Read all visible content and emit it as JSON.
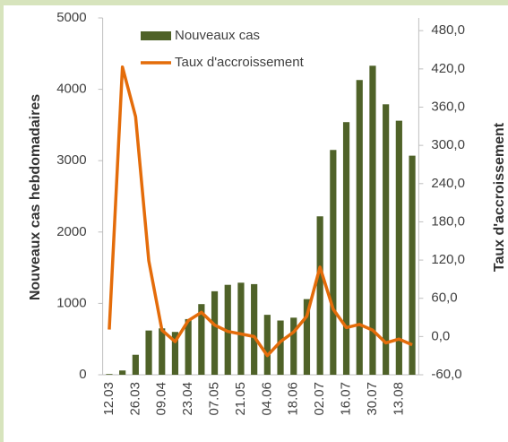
{
  "chart_data": {
    "type": "bar-line",
    "categories": [
      "12.03",
      null,
      "26.03",
      null,
      "09.04",
      null,
      "23.04",
      null,
      "07.05",
      null,
      "21.05",
      null,
      "04.06",
      null,
      "18.06",
      null,
      "02.07",
      null,
      "16.07",
      null,
      "30.07",
      null,
      "13.08",
      null
    ],
    "series": [
      {
        "name": "Nouveaux cas",
        "type": "bar",
        "color": "#4f6228",
        "values": [
          10,
          60,
          280,
          620,
          650,
          600,
          780,
          990,
          1170,
          1260,
          1290,
          1270,
          840,
          760,
          800,
          1060,
          2220,
          3150,
          3540,
          4130,
          4330,
          3790,
          3560,
          3070
        ]
      },
      {
        "name": "Taux d'accroissement",
        "type": "line",
        "axis": "y2",
        "color": "#e46c0a",
        "values": [
          11,
          423,
          345,
          119,
          10,
          -8,
          25,
          38,
          18,
          8,
          4,
          0,
          -30,
          -8,
          7,
          32,
          109,
          43,
          14,
          19,
          10,
          -10,
          -4,
          -13
        ]
      }
    ],
    "ylabel": "Nouveaux cas hebdomadaires",
    "y2label": "Taux d'accroissement",
    "ylim": [
      0,
      5000
    ],
    "yticks": [
      0,
      1000,
      2000,
      3000,
      4000,
      5000
    ],
    "y2lim": [
      -60,
      500
    ],
    "y2ticks": [
      {
        "value": -60,
        "label": "-60,0"
      },
      {
        "value": 0,
        "label": "0,0"
      },
      {
        "value": 60,
        "label": "60,0"
      },
      {
        "value": 120,
        "label": "120,0"
      },
      {
        "value": 180,
        "label": "180,0"
      },
      {
        "value": 240,
        "label": "240,0"
      },
      {
        "value": 300,
        "label": "300,0"
      },
      {
        "value": 360,
        "label": "360,0"
      },
      {
        "value": 420,
        "label": "420,0"
      },
      {
        "value": 480,
        "label": "480,0"
      }
    ]
  }
}
